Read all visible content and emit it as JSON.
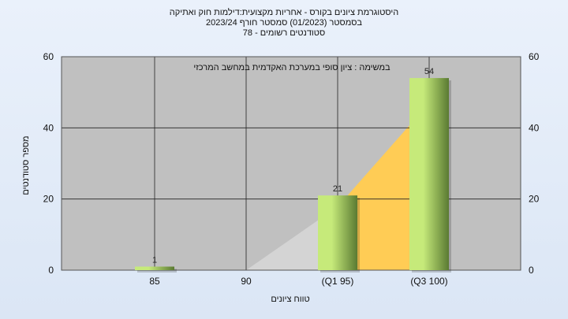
{
  "chart_data": {
    "type": "bar",
    "title_lines": [
      "היסטוגרמת ציונים בקורס - אחריות מקצועית:דילמות חוק ואתיקה",
      "בסמסטר  (01/2023)  סמסטר חורף 2023/24",
      "סטודנטים רשומים - 78"
    ],
    "annotation": "במשימה : ציון סופי במערכת האקדמית במחשב המרכזי",
    "xlabel": "טווח ציונים",
    "ylabel": "מספר סטודנטים",
    "categories": [
      "85",
      "90",
      "(Q1 95)",
      "(Q3 100)"
    ],
    "values": [
      1,
      0,
      21,
      54
    ],
    "data_labels": [
      "1",
      "",
      "21",
      "54"
    ],
    "ylim": [
      0,
      60
    ],
    "yticks": [
      0,
      20,
      40,
      60
    ],
    "grid": true,
    "secondary_y_axis": true,
    "colors": {
      "plot_bg": "#c0c0c0",
      "bar_light": "#c6ea7a",
      "bar_dark": "#5a7a32",
      "cumulative_fill": "#ffcc55",
      "cumulative_gray": "#d4d4d4"
    }
  }
}
